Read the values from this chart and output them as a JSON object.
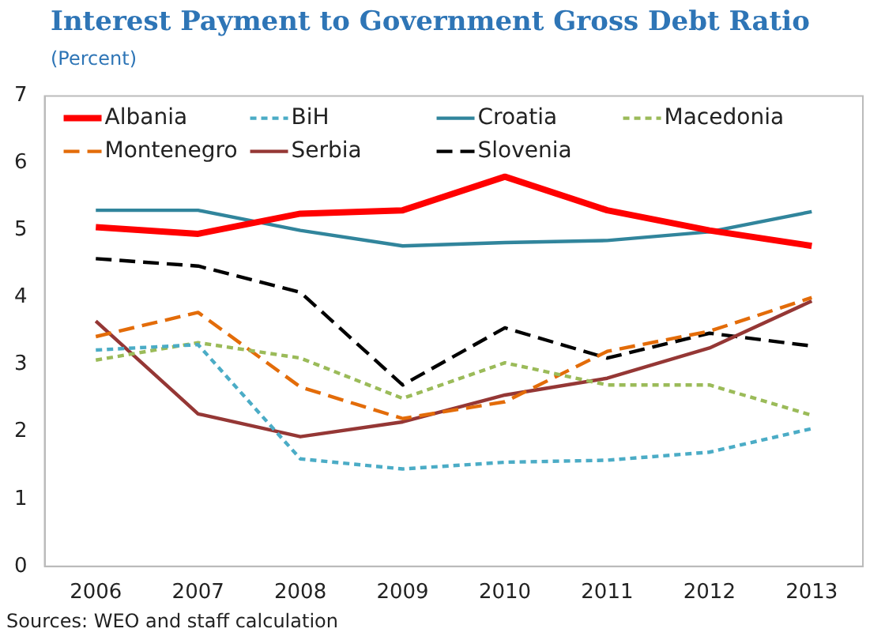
{
  "chart_data": {
    "type": "line",
    "title": "Interest Payment to Government Gross Debt Ratio",
    "subtitle": "(Percent)",
    "categories": [
      "2006",
      "2007",
      "2008",
      "2009",
      "2010",
      "2011",
      "2012",
      "2013"
    ],
    "series": [
      {
        "name": "Albania",
        "color": "#ff0000",
        "line_style": "solid",
        "values": [
          5.05,
          4.95,
          5.25,
          5.3,
          5.8,
          5.3,
          5.0,
          4.77
        ]
      },
      {
        "name": "BiH",
        "color": "#4bacc6",
        "line_style": "dotted",
        "values": [
          3.22,
          3.3,
          1.6,
          1.45,
          1.55,
          1.58,
          1.7,
          2.05
        ]
      },
      {
        "name": "Croatia",
        "color": "#31859c",
        "line_style": "solid",
        "values": [
          5.3,
          5.3,
          5.0,
          4.77,
          4.82,
          4.85,
          4.98,
          5.28
        ]
      },
      {
        "name": "Macedonia",
        "color": "#9bbb59",
        "line_style": "dotted",
        "values": [
          3.07,
          3.33,
          3.1,
          2.5,
          3.03,
          2.7,
          2.7,
          2.25
        ]
      },
      {
        "name": "Montenegro",
        "color": "#e36c09",
        "line_style": "dashed",
        "values": [
          3.42,
          3.78,
          2.67,
          2.2,
          2.45,
          3.2,
          3.5,
          4.0
        ]
      },
      {
        "name": "Serbia",
        "color": "#953735",
        "line_style": "solid",
        "values": [
          3.65,
          2.27,
          1.93,
          2.15,
          2.55,
          2.8,
          3.25,
          3.95
        ]
      },
      {
        "name": "Slovenia",
        "color": "#000000",
        "line_style": "dashed",
        "values": [
          4.58,
          4.47,
          4.08,
          2.7,
          3.55,
          3.1,
          3.47,
          3.28
        ]
      }
    ],
    "ylim": [
      0,
      7
    ],
    "yticks": [
      0,
      1,
      2,
      3,
      4,
      5,
      6,
      7
    ],
    "grid": false,
    "legend": "top",
    "marker": "none",
    "annotations": [
      "Sources: WEO and staff calculation"
    ]
  }
}
